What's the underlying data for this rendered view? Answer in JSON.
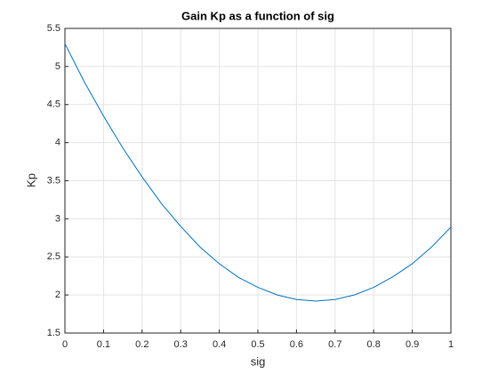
{
  "chart_data": {
    "type": "line",
    "title": "Gain Kp as a function of sig",
    "x_label": "sig",
    "y_label": "Kp",
    "x": [
      0,
      0.05,
      0.1,
      0.15,
      0.2,
      0.25,
      0.3,
      0.35,
      0.4,
      0.45,
      0.5,
      0.55,
      0.6,
      0.65,
      0.7,
      0.75,
      0.8,
      0.85,
      0.9,
      0.95,
      1
    ],
    "series": [
      {
        "name": "Kp",
        "color": "#0072bd",
        "values": [
          5.3,
          4.8,
          4.35,
          3.93,
          3.55,
          3.2,
          2.9,
          2.63,
          2.41,
          2.23,
          2.1,
          2.0,
          1.94,
          1.92,
          1.94,
          2.0,
          2.1,
          2.24,
          2.41,
          2.63,
          2.89
        ]
      }
    ],
    "xlim": [
      0,
      1
    ],
    "xticks": [
      0,
      0.1,
      0.2,
      0.3,
      0.4,
      0.5,
      0.6,
      0.7,
      0.8,
      0.9,
      1
    ],
    "ylim": [
      1.5,
      5.5
    ],
    "yticks": [
      1.5,
      2,
      2.5,
      3,
      3.5,
      4,
      4.5,
      5,
      5.5
    ],
    "grid": true
  }
}
